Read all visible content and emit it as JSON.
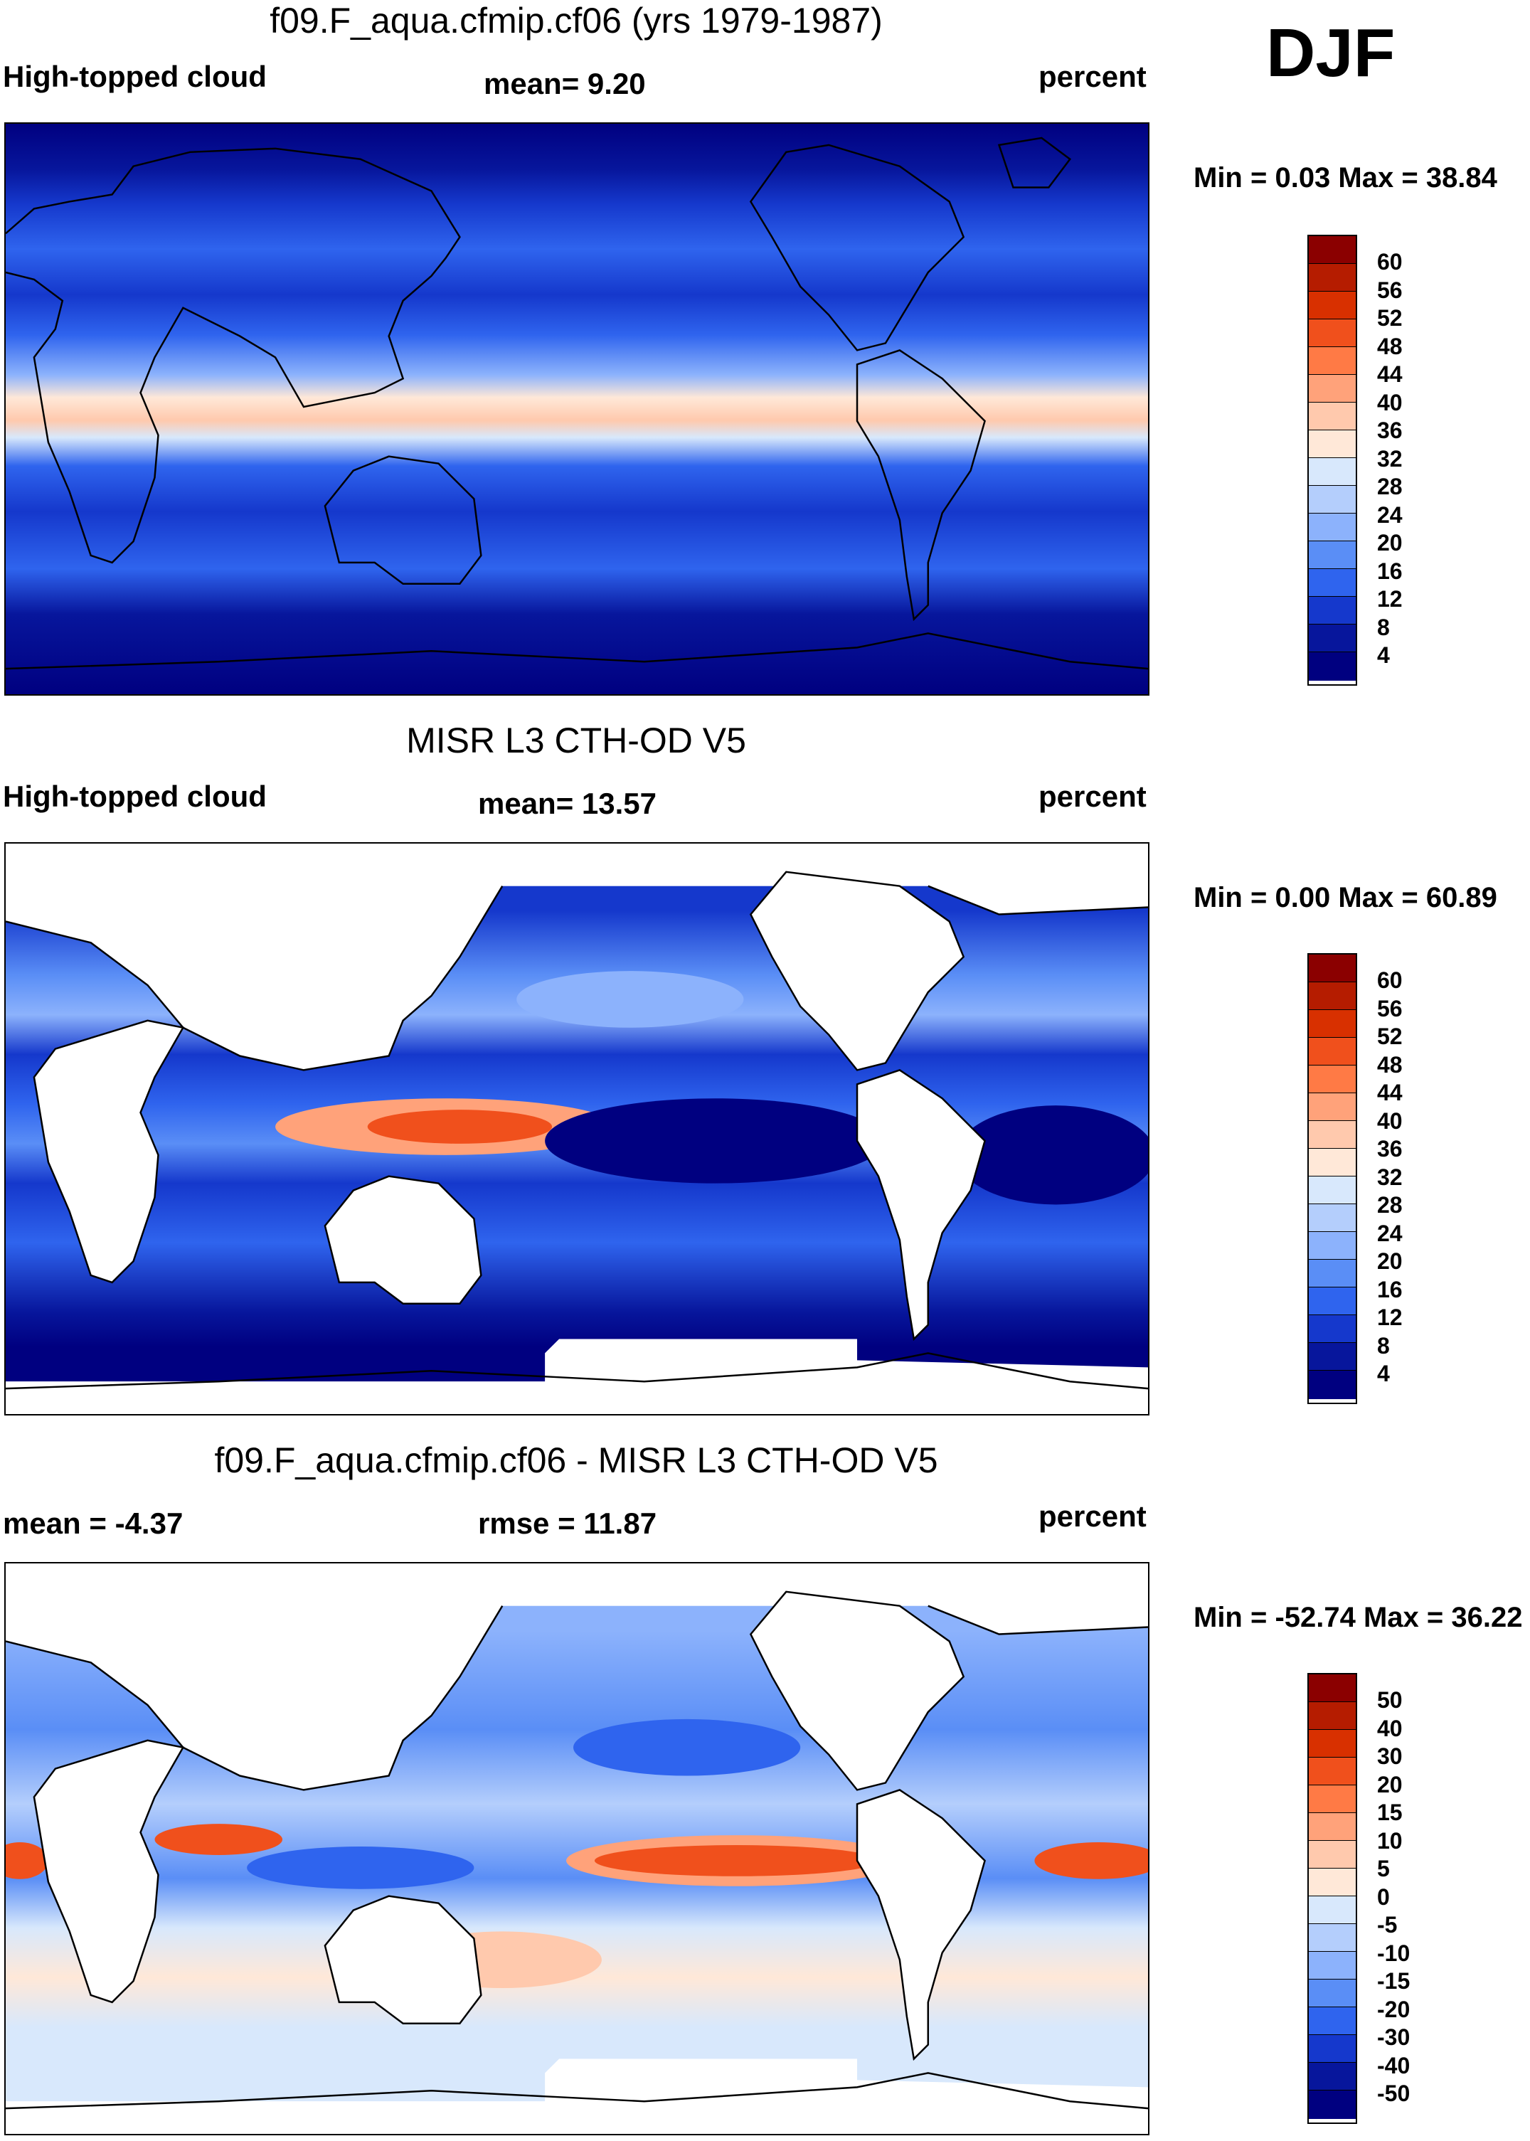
{
  "season": "DJF",
  "panels": [
    {
      "id": "model",
      "title": "f09.F_aqua.cfmip.cf06 (yrs 1979-1987)",
      "left_label": "High-topped cloud",
      "center_label": "mean=   9.20",
      "right_label": "percent",
      "minmax": "Min =   0.03 Max =  38.84",
      "ticks": [
        "60",
        "56",
        "52",
        "48",
        "44",
        "40",
        "36",
        "32",
        "28",
        "24",
        "20",
        "16",
        "12",
        "8",
        "4"
      ],
      "colors": [
        "#8b0000",
        "#b51c00",
        "#d83000",
        "#f0501c",
        "#ff7a45",
        "#ffa27a",
        "#ffc9ad",
        "#ffe8d8",
        "#d8e8fc",
        "#b4cefc",
        "#8cb2fc",
        "#5a8ef6",
        "#2f64ee",
        "#1538cc",
        "#07169c",
        "#000080"
      ]
    },
    {
      "id": "obs",
      "title": "MISR L3 CTH-OD V5",
      "left_label": "High-topped cloud",
      "center_label": "mean=  13.57",
      "right_label": "percent",
      "minmax": "Min =   0.00 Max =  60.89",
      "ticks": [
        "60",
        "56",
        "52",
        "48",
        "44",
        "40",
        "36",
        "32",
        "28",
        "24",
        "20",
        "16",
        "12",
        "8",
        "4"
      ],
      "colors": [
        "#8b0000",
        "#b51c00",
        "#d83000",
        "#f0501c",
        "#ff7a45",
        "#ffa27a",
        "#ffc9ad",
        "#ffe8d8",
        "#d8e8fc",
        "#b4cefc",
        "#8cb2fc",
        "#5a8ef6",
        "#2f64ee",
        "#1538cc",
        "#07169c",
        "#000080"
      ]
    },
    {
      "id": "diff",
      "title": "f09.F_aqua.cfmip.cf06 - MISR L3 CTH-OD V5",
      "left_label": "mean =  -4.37",
      "center_label": "rmse =  11.87",
      "right_label": "percent",
      "minmax": "Min = -52.74 Max =  36.22",
      "ticks": [
        "50",
        "40",
        "30",
        "20",
        "15",
        "10",
        "5",
        "0",
        "-5",
        "-10",
        "-15",
        "-20",
        "-30",
        "-40",
        "-50"
      ],
      "colors": [
        "#8b0000",
        "#b51c00",
        "#d83000",
        "#f0501c",
        "#ff7a45",
        "#ffa27a",
        "#ffc9ad",
        "#ffe8d8",
        "#d8e8fc",
        "#b4cefc",
        "#8cb2fc",
        "#5a8ef6",
        "#2f64ee",
        "#1538cc",
        "#07169c",
        "#000080"
      ]
    }
  ]
}
